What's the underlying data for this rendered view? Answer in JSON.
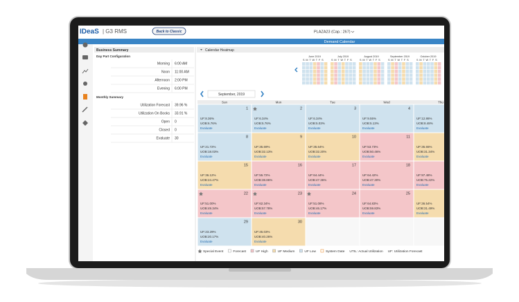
{
  "header": {
    "logo": "IDeaS",
    "product": "| G3 RMS",
    "button": "Back to Classic",
    "property": "PLAZA23 (Cap.: 267)"
  },
  "page_title": "Demand Calendar",
  "summary": {
    "title": "Business Summary",
    "day_part_title": "Day Part Configuration",
    "day_parts": [
      [
        "Morning",
        "6:00 AM"
      ],
      [
        "Noon",
        "11:00 AM"
      ],
      [
        "Afternoon",
        "2:00 PM"
      ],
      [
        "Evening",
        "6:00 PM"
      ]
    ],
    "monthly_title": "Monthly Summary",
    "monthly": [
      [
        "Utilization Forecast",
        "39.96 %"
      ],
      [
        "Utilization On Books",
        "33.91 %"
      ],
      [
        "Open",
        "0"
      ],
      [
        "Closed",
        "0"
      ],
      [
        "Evaluate",
        "30"
      ]
    ]
  },
  "heatmap": {
    "title": "Calendar Heatmap",
    "weekday_initials": "S M T W T F S",
    "months": [
      "June 2019",
      "July 2019",
      "August 2019",
      "September 2019",
      "October 2019"
    ]
  },
  "calendar": {
    "month": "September, 2019",
    "weekdays": [
      "Sun",
      "Mon",
      "Tue",
      "Wed",
      "Thu"
    ],
    "cells": [
      {
        "day": "1",
        "uf": "UF:8.36%",
        "uob": "UOB:6.76%",
        "action": "Evaluate",
        "level": "low",
        "special": false
      },
      {
        "day": "2",
        "uf": "UF:6.34%",
        "uob": "UOB:5.76%",
        "action": "Evaluate",
        "level": "low",
        "special": true
      },
      {
        "day": "3",
        "uf": "UF:6.34%",
        "uob": "UOB:5.03%",
        "action": "Evaluate",
        "level": "low",
        "special": false
      },
      {
        "day": "4",
        "uf": "UF:9.55%",
        "uob": "UOB:5.13%",
        "action": "Evaluate",
        "level": "low",
        "special": false
      },
      {
        "day": "5",
        "uf": "UF:12.86%",
        "uob": "UOB:8.48%",
        "action": "Evaluate",
        "level": "low",
        "special": false
      },
      {
        "day": "8",
        "uf": "UF:21.72%",
        "uob": "UOB:18.03%",
        "action": "Evaluate",
        "level": "low",
        "special": false
      },
      {
        "day": "9",
        "uf": "UF:35.69%",
        "uob": "UOB:32.13%",
        "action": "Evaluate",
        "level": "medium",
        "special": false
      },
      {
        "day": "10",
        "uf": "UF:35.64%",
        "uob": "UOB:32.20%",
        "action": "Evaluate",
        "level": "medium",
        "special": false
      },
      {
        "day": "11",
        "uf": "UF:53.73%",
        "uob": "UOB:50.46%",
        "action": "Evaluate",
        "level": "high",
        "special": false
      },
      {
        "day": "12",
        "uf": "UF:35.65%",
        "uob": "UOB:31.34%",
        "action": "Evaluate",
        "level": "medium",
        "special": false
      },
      {
        "day": "15",
        "uf": "UF:36.12%",
        "uob": "UOB:24.47%",
        "action": "Evaluate",
        "level": "medium",
        "special": false
      },
      {
        "day": "16",
        "uf": "UF:55.72%",
        "uob": "UOB:38.86%",
        "action": "Evaluate",
        "level": "high",
        "special": false
      },
      {
        "day": "17",
        "uf": "UF:64.44%",
        "uob": "UOB:47.36%",
        "action": "Evaluate",
        "level": "high",
        "special": false
      },
      {
        "day": "18",
        "uf": "UF:64.42%",
        "uob": "UOB:47.30%",
        "action": "Evaluate",
        "level": "high",
        "special": false
      },
      {
        "day": "19",
        "uf": "UF:97.48%",
        "uob": "UOB:75.22%",
        "action": "Evaluate",
        "level": "high",
        "special": false
      },
      {
        "day": "22",
        "uf": "UF:51.00%",
        "uob": "UOB:49.34%",
        "action": "Evaluate",
        "level": "high",
        "special": true
      },
      {
        "day": "23",
        "uf": "UF:62.34%",
        "uob": "UOB:57.78%",
        "action": "Evaluate",
        "level": "high",
        "special": true
      },
      {
        "day": "24",
        "uf": "UF:51.08%",
        "uob": "UOB:46.17%",
        "action": "Evaluate",
        "level": "high",
        "special": true
      },
      {
        "day": "25",
        "uf": "UF:64.83%",
        "uob": "UOB:59.83%",
        "action": "Evaluate",
        "level": "high",
        "special": false
      },
      {
        "day": "26",
        "uf": "UF:36.54%",
        "uob": "UOB:31.49%",
        "action": "Evaluate",
        "level": "medium",
        "special": false
      },
      {
        "day": "29",
        "uf": "UF:23.29%",
        "uob": "UOB:20.17%",
        "action": "Evaluate",
        "level": "low",
        "special": false
      },
      {
        "day": "30",
        "uf": "UF:45.03%",
        "uob": "UOB:40.26%",
        "action": "Evaluate",
        "level": "medium",
        "special": false
      }
    ]
  },
  "legend": [
    "Special Event",
    "Forecast",
    "UF High",
    "UF Medium",
    "UF Low",
    "System Date",
    "UTIL: Actual Utilization",
    "UF: Utilization Forecast"
  ]
}
